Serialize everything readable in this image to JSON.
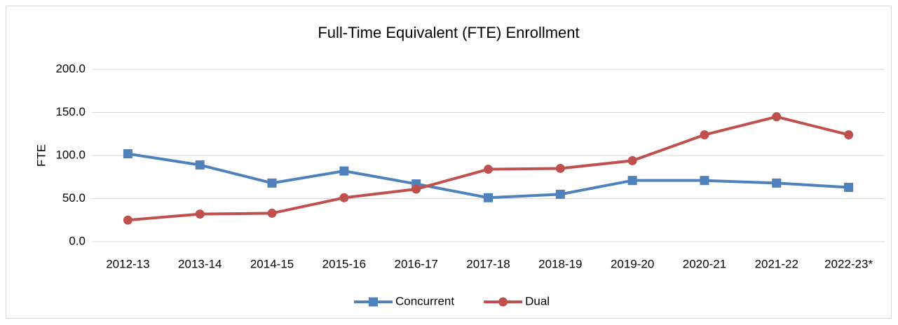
{
  "chart_data": {
    "type": "line",
    "title": "Full-Time Equivalent (FTE) Enrollment",
    "y_label": "FTE",
    "categories": [
      "2012-13",
      "2013-14",
      "2014-15",
      "2015-16",
      "2016-17",
      "2017-18",
      "2018-19",
      "2019-20",
      "2020-21",
      "2021-22",
      "2022-23*"
    ],
    "series": [
      {
        "name": "Concurrent",
        "color": "#4f81bd",
        "marker": "square",
        "values": [
          102,
          89,
          68,
          82,
          67,
          51,
          55,
          71,
          71,
          68,
          63
        ]
      },
      {
        "name": "Dual",
        "color": "#c0504d",
        "marker": "circle",
        "values": [
          25,
          32,
          33,
          51,
          61,
          84,
          85,
          94,
          124,
          145,
          124
        ]
      }
    ],
    "ylim": [
      0,
      200
    ],
    "yticks": [
      {
        "value": 0,
        "label": "0.0"
      },
      {
        "value": 50,
        "label": "50.0"
      },
      {
        "value": 100,
        "label": "100.0"
      },
      {
        "value": 150,
        "label": "150.0"
      },
      {
        "value": 200,
        "label": "200.0"
      }
    ],
    "grid": true,
    "legend": "bottom"
  }
}
